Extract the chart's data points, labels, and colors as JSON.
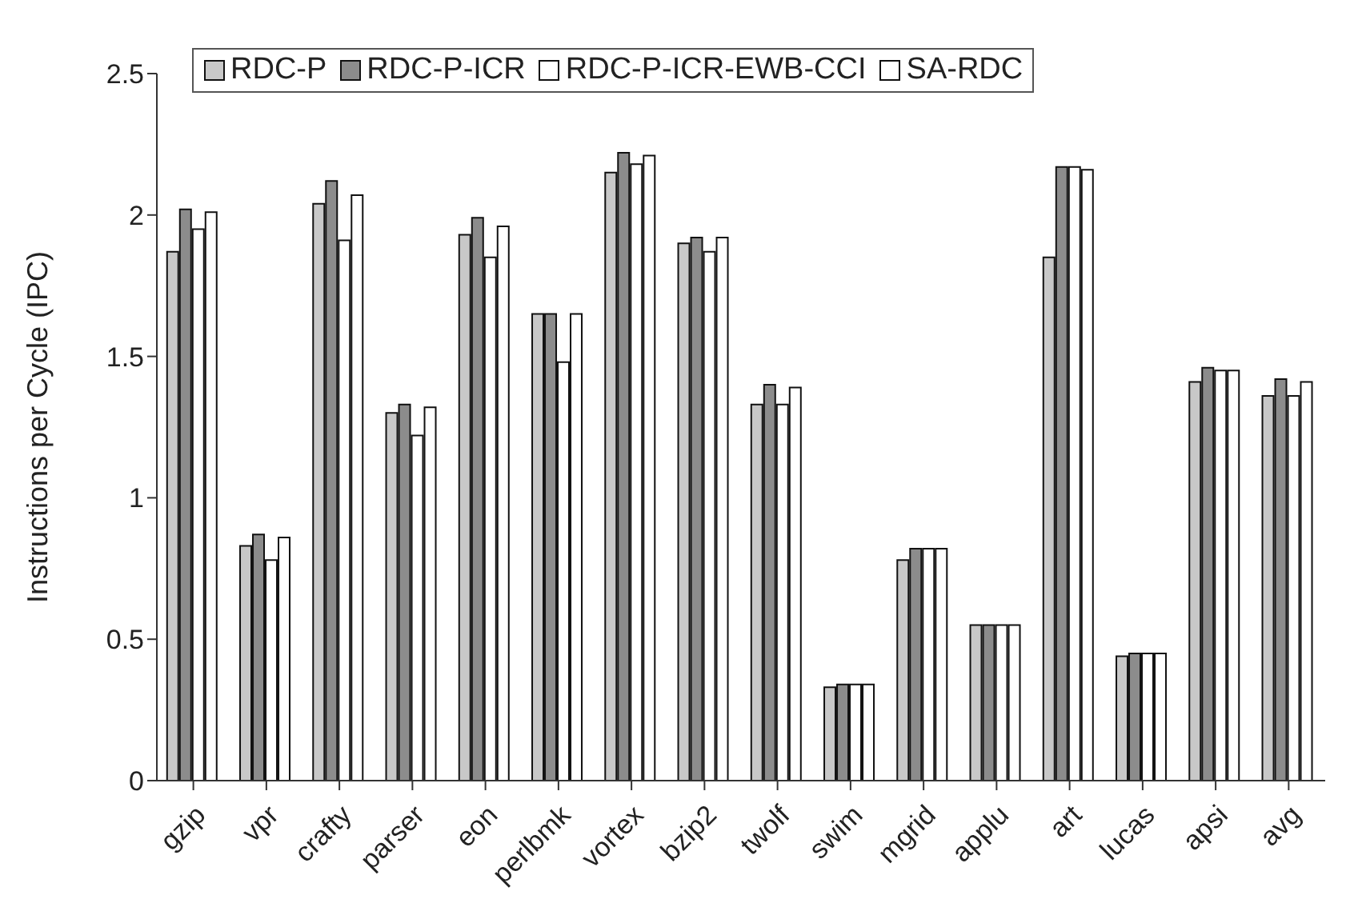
{
  "chart_data": {
    "type": "bar",
    "ylabel": "Instructions per Cycle (IPC)",
    "categories": [
      "gzip",
      "vpr",
      "crafty",
      "parser",
      "eon",
      "perlbmk",
      "vortex",
      "bzip2",
      "twolf",
      "swim",
      "mgrid",
      "applu",
      "art",
      "lucas",
      "apsi",
      "avg"
    ],
    "series": [
      {
        "name": "RDC-P",
        "color": "#c8c8c8",
        "values": [
          1.87,
          0.83,
          2.04,
          1.3,
          1.93,
          1.65,
          2.15,
          1.9,
          1.33,
          0.33,
          0.78,
          0.55,
          1.85,
          0.44,
          1.41,
          1.36
        ]
      },
      {
        "name": "RDC-P-ICR",
        "color": "#8c8c8c",
        "values": [
          2.02,
          0.87,
          2.12,
          1.33,
          1.99,
          1.65,
          2.22,
          1.92,
          1.4,
          0.34,
          0.82,
          0.55,
          2.17,
          0.45,
          1.46,
          1.42
        ]
      },
      {
        "name": "RDC-P-ICR-EWB-CCI",
        "color": "#ffffff",
        "values": [
          1.95,
          0.78,
          1.91,
          1.22,
          1.85,
          1.48,
          2.18,
          1.87,
          1.33,
          0.34,
          0.82,
          0.55,
          2.17,
          0.45,
          1.45,
          1.36
        ]
      },
      {
        "name": "SA-RDC",
        "color": "#ffffff",
        "values": [
          2.01,
          0.86,
          2.07,
          1.32,
          1.96,
          1.65,
          2.21,
          1.92,
          1.39,
          0.34,
          0.82,
          0.55,
          2.16,
          0.45,
          1.45,
          1.41
        ]
      }
    ],
    "ylim": [
      0,
      2.5
    ],
    "yticks": [
      0,
      0.5,
      1,
      1.5,
      2,
      2.5
    ],
    "grid": false,
    "legend": "top left"
  }
}
